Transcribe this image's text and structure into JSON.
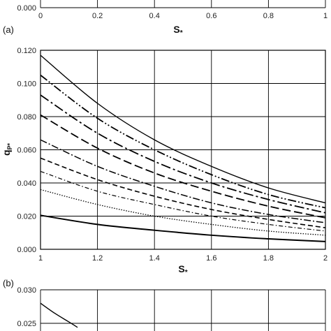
{
  "chart_data": [
    {
      "type": "line",
      "panel_label": "",
      "xlabel": "S",
      "xlabel_sub": "*",
      "xlim": [
        0,
        1
      ],
      "x_tick_labels": [
        "0",
        "0.2",
        "0.4",
        "0.6",
        "0.8",
        "1"
      ],
      "y_tick_labels": [
        "0.000"
      ],
      "grid": true
    },
    {
      "type": "line",
      "panel_label": "(a)",
      "xlabel": "S",
      "xlabel_sub": "*",
      "ylabel": "q",
      "ylabel_sub": "P*",
      "xlim": [
        1,
        2
      ],
      "ylim": [
        0,
        0.12
      ],
      "x_tick_labels": [
        "1",
        "1.2",
        "1.4",
        "1.6",
        "1.8",
        "2"
      ],
      "y_tick_labels": [
        "0.000",
        "0.020",
        "0.040",
        "0.060",
        "0.080",
        "0.100",
        "0.120"
      ],
      "grid": true,
      "series": [
        {
          "style": "solid",
          "x": [
            1,
            1.2,
            1.4,
            1.6,
            1.8,
            2
          ],
          "values": [
            0.117,
            0.088,
            0.066,
            0.05,
            0.037,
            0.028
          ]
        },
        {
          "style": "dashdotdot",
          "x": [
            1,
            1.2,
            1.4,
            1.6,
            1.8,
            2
          ],
          "values": [
            0.105,
            0.079,
            0.06,
            0.045,
            0.033,
            0.025
          ]
        },
        {
          "style": "dashdot",
          "x": [
            1,
            1.2,
            1.4,
            1.6,
            1.8,
            2
          ],
          "values": [
            0.093,
            0.07,
            0.053,
            0.04,
            0.03,
            0.022
          ]
        },
        {
          "style": "longdash",
          "x": [
            1,
            1.2,
            1.4,
            1.6,
            1.8,
            2
          ],
          "values": [
            0.081,
            0.061,
            0.046,
            0.035,
            0.026,
            0.019
          ]
        },
        {
          "style": "dashdot-thin",
          "x": [
            1,
            1.2,
            1.4,
            1.6,
            1.8,
            2
          ],
          "values": [
            0.066,
            0.05,
            0.038,
            0.028,
            0.021,
            0.016
          ]
        },
        {
          "style": "dashed",
          "x": [
            1,
            1.2,
            1.4,
            1.6,
            1.8,
            2
          ],
          "values": [
            0.055,
            0.042,
            0.032,
            0.024,
            0.018,
            0.013
          ]
        },
        {
          "style": "dashdot-fine",
          "x": [
            1,
            1.2,
            1.4,
            1.6,
            1.8,
            2
          ],
          "values": [
            0.047,
            0.035,
            0.027,
            0.02,
            0.015,
            0.011
          ]
        },
        {
          "style": "dotted",
          "x": [
            1,
            1.2,
            1.4,
            1.6,
            1.8,
            2
          ],
          "values": [
            0.036,
            0.027,
            0.02,
            0.015,
            0.011,
            0.0085
          ]
        },
        {
          "style": "solid-thick",
          "x": [
            1,
            1.2,
            1.4,
            1.6,
            1.8,
            2
          ],
          "values": [
            0.0205,
            0.015,
            0.0115,
            0.0085,
            0.0063,
            0.0047
          ]
        }
      ]
    },
    {
      "type": "line",
      "panel_label": "(b)",
      "xlim": [
        1,
        2
      ],
      "y_tick_labels": [
        "0.030",
        "0.025"
      ],
      "y_tick_values": [
        0.03,
        0.025
      ],
      "ylim_visible": [
        0.0225,
        0.03
      ],
      "grid": true,
      "series": [
        {
          "style": "solid",
          "x": [
            1,
            1.05,
            1.1,
            1.13
          ],
          "values": [
            0.028,
            0.0265,
            0.0252,
            0.0244
          ]
        }
      ]
    }
  ]
}
